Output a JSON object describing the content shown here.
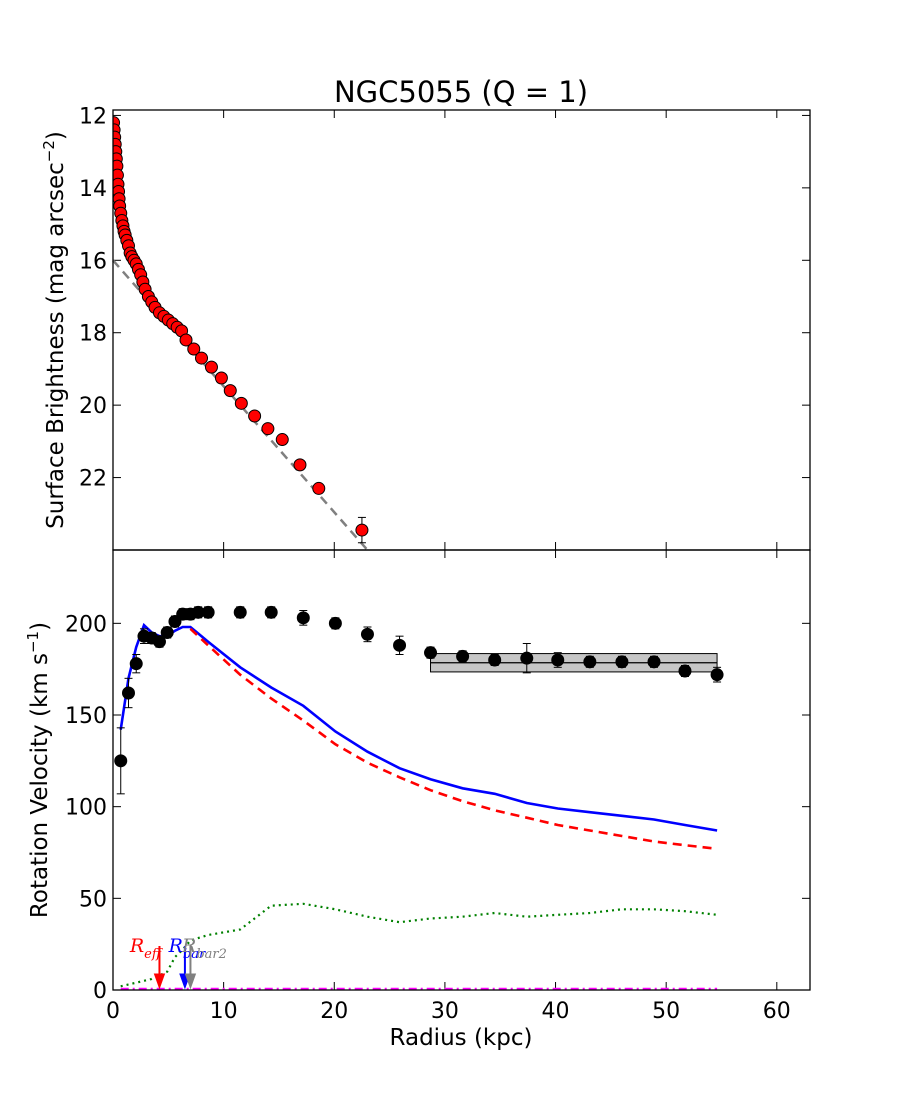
{
  "chart_data": [
    {
      "panel": "top",
      "type": "scatter",
      "title": "NGC5055 (Q = 1)",
      "xlabel": "",
      "ylabel": "Surface Brightness (mag arcsec",
      "ylabel_sup": "−2",
      "ylabel_close": ")",
      "xlim": [
        0,
        63
      ],
      "ylim": [
        24,
        11.85
      ],
      "y_inverted": true,
      "yticks": [
        12,
        14,
        16,
        18,
        20,
        22
      ],
      "ytick_labels": [
        "12",
        "14",
        "16",
        "18",
        "20",
        "22"
      ],
      "marker_color": "#ff0000",
      "fit_color": "#808080",
      "profile": {
        "x": [
          0.05,
          0.1,
          0.15,
          0.2,
          0.25,
          0.3,
          0.35,
          0.4,
          0.45,
          0.5,
          0.55,
          0.6,
          0.7,
          0.8,
          0.9,
          1.0,
          1.1,
          1.25,
          1.4,
          1.55,
          1.7,
          1.9,
          2.1,
          2.3,
          2.5,
          2.7,
          2.9,
          3.2,
          3.5,
          3.8,
          4.2,
          4.6,
          5.0,
          5.4,
          5.8,
          6.2,
          6.6,
          7.3,
          8.0,
          8.9,
          9.8,
          10.6,
          11.6,
          12.8,
          14.0,
          15.3,
          16.9,
          18.6,
          22.5
        ],
        "y": [
          12.2,
          12.4,
          12.6,
          12.8,
          13.0,
          13.2,
          13.4,
          13.65,
          13.9,
          14.1,
          14.3,
          14.5,
          14.7,
          14.9,
          15.05,
          15.2,
          15.3,
          15.45,
          15.6,
          15.8,
          15.9,
          16.0,
          16.1,
          16.25,
          16.4,
          16.6,
          16.8,
          17.0,
          17.15,
          17.3,
          17.45,
          17.55,
          17.65,
          17.75,
          17.85,
          17.95,
          18.2,
          18.45,
          18.7,
          18.95,
          19.25,
          19.6,
          19.95,
          20.3,
          20.65,
          20.95,
          21.65,
          22.3,
          23.45
        ],
        "err_last": 0.35
      },
      "fit_line": {
        "x": [
          0,
          23
        ],
        "y": [
          16.0,
          24.0
        ]
      }
    },
    {
      "panel": "bottom",
      "type": "line",
      "xlabel": "Radius (kpc)",
      "ylabel": "Rotation Velocity (km s",
      "ylabel_sup": "−1",
      "ylabel_close": ")",
      "xlim": [
        0,
        63
      ],
      "ylim": [
        0,
        240
      ],
      "xticks": [
        0,
        10,
        20,
        30,
        40,
        50,
        60
      ],
      "xtick_labels": [
        "0",
        "10",
        "20",
        "30",
        "40",
        "50",
        "60"
      ],
      "yticks": [
        0,
        50,
        100,
        150,
        200
      ],
      "ytick_labels": [
        "0",
        "50",
        "100",
        "150",
        "200"
      ],
      "observed": {
        "color": "#000000",
        "x": [
          0.7,
          1.4,
          2.1,
          2.8,
          3.5,
          4.2,
          4.9,
          5.6,
          6.3,
          7.0,
          7.7,
          8.6,
          11.5,
          14.3,
          17.2,
          20.1,
          23.0,
          25.9,
          28.7,
          31.6,
          34.5,
          37.4,
          40.2,
          43.1,
          46.0,
          48.9,
          51.7,
          54.6
        ],
        "y": [
          125,
          162,
          178,
          193,
          192,
          190,
          195,
          201,
          205,
          205,
          206,
          206,
          206,
          206,
          203,
          200,
          194,
          188,
          184,
          182,
          180,
          181,
          180,
          179,
          179,
          179,
          174,
          172
        ],
        "err": [
          18,
          8,
          5,
          4,
          3,
          3,
          3,
          3,
          3,
          3,
          3,
          3,
          3,
          3,
          4,
          3,
          4,
          5,
          3,
          3,
          3,
          8,
          4,
          3,
          3,
          3,
          3,
          4
        ]
      },
      "flat_velocity": {
        "x": [
          28.7,
          54.6
        ],
        "value": 178.5,
        "band": [
          173.5,
          183.5
        ],
        "color": "#808080"
      },
      "series": [
        {
          "name": "",
          "style": "solid",
          "color": "#0000ff",
          "x": [
            0.7,
            1.4,
            2.1,
            2.8,
            3.5,
            4.2,
            4.9,
            5.6,
            6.3,
            7.0,
            8.6,
            11.5,
            14.3,
            17.2,
            20.1,
            23.0,
            25.9,
            28.7,
            31.6,
            34.5,
            37.4,
            40.2,
            43.1,
            46.0,
            48.9,
            51.7,
            54.6
          ],
          "y": [
            142,
            170,
            187,
            199,
            195,
            193,
            193,
            196,
            198,
            198,
            190,
            176,
            165,
            155,
            141,
            130,
            121,
            115,
            110,
            107,
            102,
            99,
            97,
            95,
            93,
            90,
            87
          ]
        },
        {
          "name": "",
          "style": "dashed",
          "color": "#ff0000",
          "x": [
            7.0,
            8.6,
            11.5,
            14.3,
            17.2,
            20.1,
            23.0,
            25.9,
            28.7,
            31.6,
            34.5,
            37.4,
            40.2,
            43.1,
            46.0,
            48.9,
            51.7,
            54.6
          ],
          "y": [
            197,
            188,
            172,
            159,
            147,
            134,
            124,
            116,
            109,
            103,
            98,
            94,
            90,
            87,
            84,
            81,
            79,
            77
          ]
        },
        {
          "name": "",
          "style": "dotted",
          "color": "#008000",
          "x": [
            0.7,
            2.1,
            3.5,
            4.9,
            5.6,
            6.3,
            7.0,
            8.6,
            11.5,
            14.3,
            17.2,
            20.1,
            23.0,
            25.9,
            28.7,
            31.6,
            34.5,
            37.4,
            40.2,
            43.1,
            46.0,
            48.9,
            51.7,
            54.6
          ],
          "y": [
            2,
            4,
            6,
            10,
            18,
            22,
            27,
            30,
            33,
            46,
            47,
            44,
            40,
            37,
            39,
            40,
            42,
            40,
            41,
            42,
            44,
            44,
            43,
            41
          ]
        },
        {
          "name": "",
          "style": "dashdot",
          "color": "#ff00ff",
          "x": [
            0.7,
            54.6
          ],
          "y": [
            0.5,
            0.5
          ]
        }
      ],
      "markers": [
        {
          "label": "R",
          "sub": "eff",
          "x": 4.2,
          "color": "#ff0000"
        },
        {
          "label": "R",
          "sub": "bar",
          "x": 6.5,
          "color": "#0000ff"
        },
        {
          "label": "R",
          "sub": "bar2",
          "x": 7.0,
          "color": "#808080"
        }
      ]
    }
  ]
}
